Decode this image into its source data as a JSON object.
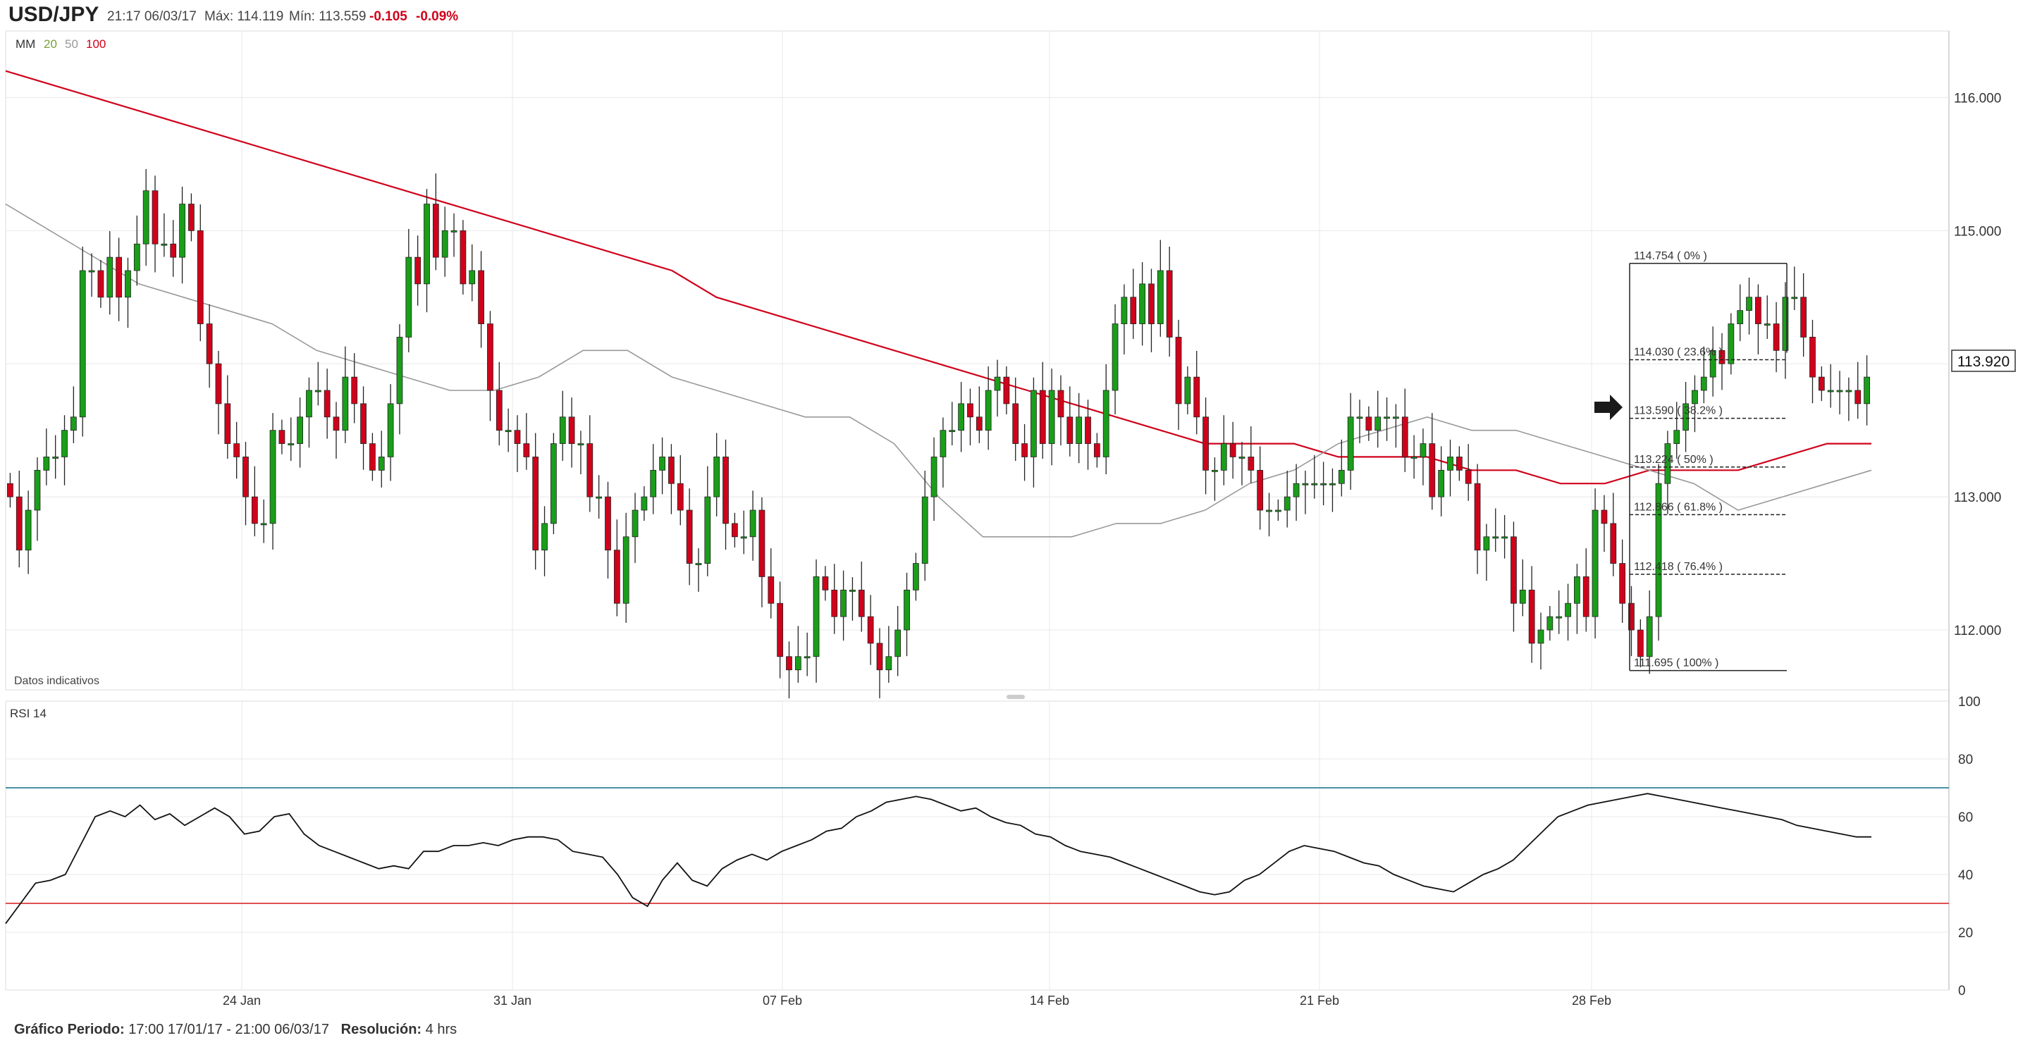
{
  "header": {
    "symbol": "USD/JPY",
    "datetime": "21:17 06/03/17",
    "max_label": "Máx: 114.119",
    "min_label": "Mín: 113.559",
    "change": "-0.105",
    "change_pct": "-0.09%"
  },
  "legend": {
    "label": "MM",
    "ma20": "20",
    "ma50": "50",
    "ma100": "100"
  },
  "colors": {
    "up": "#1a9e1a",
    "down": "#d0021b",
    "ma20": "#d0021b",
    "ma50": "#7a9e3a",
    "ma100": "#d0021b",
    "ma_gray": "#999999",
    "rsi_upper": "#4a90a4",
    "rsi_lower": "#e05050",
    "grid": "#e8e8e8"
  },
  "datos_indicativos": "Datos indicativos",
  "rsi_label": "RSI  14",
  "footer": {
    "period_label": "Gráfico Periodo:",
    "period_value": "17:00 17/01/17 - 21:00 06/03/17",
    "res_label": "Resolución:",
    "res_value": "4 hrs"
  },
  "chart_data": [
    {
      "type": "candlestick",
      "title": "USD/JPY",
      "interval": "4 hrs",
      "x_ticks": [
        "24 Jan",
        "31 Jan",
        "07 Feb",
        "14 Feb",
        "21 Feb",
        "28 Feb"
      ],
      "y_ticks": [
        "112.000",
        "113.000",
        "114.000",
        "115.000",
        "116.000"
      ],
      "ylim": [
        111.55,
        116.5
      ],
      "last_price": "113.920",
      "candles_close": [
        113.0,
        112.6,
        112.9,
        113.2,
        113.3,
        113.3,
        113.5,
        113.6,
        114.7,
        114.7,
        114.5,
        114.8,
        114.5,
        114.7,
        114.9,
        115.3,
        114.9,
        114.9,
        114.8,
        115.2,
        115.0,
        114.3,
        114.0,
        113.7,
        113.4,
        113.3,
        113.0,
        112.8,
        112.8,
        113.5,
        113.4,
        113.4,
        113.6,
        113.8,
        113.8,
        113.6,
        113.5,
        113.9,
        113.7,
        113.4,
        113.2,
        113.3,
        113.7,
        114.2,
        114.8,
        114.6,
        115.2,
        114.8,
        115.0,
        115.0,
        114.6,
        114.7,
        114.3,
        113.8,
        113.5,
        113.5,
        113.4,
        113.3,
        112.6,
        112.8,
        113.4,
        113.6,
        113.4,
        113.4,
        113.0,
        113.0,
        112.6,
        112.2,
        112.7,
        112.9,
        113.0,
        113.2,
        113.3,
        113.1,
        112.9,
        112.5,
        112.5,
        113.0,
        113.3,
        112.8,
        112.7,
        112.7,
        112.9,
        112.4,
        112.2,
        111.8,
        111.7,
        111.8,
        111.8,
        112.4,
        112.3,
        112.1,
        112.3,
        112.3,
        112.1,
        111.9,
        111.7,
        111.8,
        112.0,
        112.3,
        112.5,
        113.0,
        113.3,
        113.5,
        113.5,
        113.7,
        113.6,
        113.5,
        113.8,
        113.9,
        113.7,
        113.4,
        113.3,
        113.8,
        113.4,
        113.8,
        113.6,
        113.4,
        113.6,
        113.4,
        113.3,
        113.8,
        114.3,
        114.5,
        114.3,
        114.6,
        114.3,
        114.7,
        114.2,
        113.7,
        113.9,
        113.6,
        113.2,
        113.2,
        113.4,
        113.3,
        113.3,
        113.2,
        112.9,
        112.9,
        112.9,
        113.0,
        113.1,
        113.1,
        113.1,
        113.1,
        113.1,
        113.2,
        113.6,
        113.6,
        113.5,
        113.6,
        113.6,
        113.6,
        113.3,
        113.3,
        113.4,
        113.0,
        113.2,
        113.3,
        113.2,
        113.1,
        112.6,
        112.7,
        112.7,
        112.7,
        112.2,
        112.3,
        111.9,
        112.0,
        112.1,
        112.1,
        112.2,
        112.4,
        112.1,
        112.9,
        112.8,
        112.5,
        112.2,
        112.0,
        111.8,
        112.1,
        113.1,
        113.4,
        113.5,
        113.7,
        113.8,
        113.9,
        114.1,
        114.0,
        114.3,
        114.4,
        114.5,
        114.3,
        114.3,
        114.1,
        114.5,
        114.5,
        114.2,
        113.9,
        113.8,
        113.8,
        113.8,
        113.8,
        113.7,
        113.9
      ],
      "moving_averages": [
        {
          "name": "MM 100",
          "color": "#d0021b",
          "values": [
            116.2,
            116.1,
            116.0,
            115.9,
            115.8,
            115.7,
            115.6,
            115.5,
            115.4,
            115.3,
            115.2,
            115.1,
            115.0,
            114.9,
            114.8,
            114.7,
            114.5,
            114.4,
            114.3,
            114.2,
            114.1,
            114.0,
            113.9,
            113.8,
            113.7,
            113.6,
            113.5,
            113.4,
            113.4,
            113.4,
            113.3,
            113.3,
            113.3,
            113.2,
            113.2,
            113.1,
            113.1,
            113.2,
            113.2,
            113.2,
            113.3,
            113.4,
            113.4
          ]
        },
        {
          "name": "MM 50",
          "color": "#999999",
          "values": [
            115.2,
            115.0,
            114.8,
            114.6,
            114.5,
            114.4,
            114.3,
            114.1,
            114.0,
            113.9,
            113.8,
            113.8,
            113.9,
            114.1,
            114.1,
            113.9,
            113.8,
            113.7,
            113.6,
            113.6,
            113.4,
            113.0,
            112.7,
            112.7,
            112.7,
            112.8,
            112.8,
            112.9,
            113.1,
            113.2,
            113.4,
            113.5,
            113.6,
            113.5,
            113.5,
            113.4,
            113.3,
            113.2,
            113.1,
            112.9,
            113.0,
            113.1,
            113.2
          ]
        }
      ],
      "fibonacci": [
        {
          "label": "114.754 ( 0% )",
          "value": 114.754
        },
        {
          "label": "114.030 ( 23.6% )",
          "value": 114.03
        },
        {
          "label": "113.590 ( 38.2% )",
          "value": 113.59
        },
        {
          "label": "113.224 ( 50% )",
          "value": 113.224
        },
        {
          "label": "112.866 ( 61.8% )",
          "value": 112.866
        },
        {
          "label": "112.418 ( 76.4% )",
          "value": 112.418
        },
        {
          "label": "111.695 ( 100% )",
          "value": 111.695
        }
      ]
    },
    {
      "type": "line",
      "title": "RSI 14",
      "y_ticks": [
        "0",
        "20",
        "40",
        "60",
        "80",
        "100"
      ],
      "ylim": [
        0,
        100
      ],
      "levels": [
        30,
        70
      ],
      "values": [
        23,
        30,
        37,
        38,
        40,
        50,
        60,
        62,
        60,
        64,
        59,
        61,
        57,
        60,
        63,
        60,
        54,
        55,
        60,
        61,
        54,
        50,
        48,
        46,
        44,
        42,
        43,
        42,
        48,
        48,
        50,
        50,
        51,
        50,
        52,
        53,
        53,
        52,
        48,
        47,
        46,
        40,
        32,
        29,
        38,
        44,
        38,
        36,
        42,
        45,
        47,
        45,
        48,
        50,
        52,
        55,
        56,
        60,
        62,
        65,
        66,
        67,
        66,
        64,
        62,
        63,
        60,
        58,
        57,
        54,
        53,
        50,
        48,
        47,
        46,
        44,
        42,
        40,
        38,
        36,
        34,
        33,
        34,
        38,
        40,
        44,
        48,
        50,
        49,
        48,
        46,
        44,
        43,
        40,
        38,
        36,
        35,
        34,
        37,
        40,
        42,
        45,
        50,
        55,
        60,
        62,
        64,
        65,
        66,
        67,
        68,
        67,
        66,
        65,
        64,
        63,
        62,
        61,
        60,
        59,
        57,
        56,
        55,
        54,
        53,
        53
      ]
    }
  ]
}
